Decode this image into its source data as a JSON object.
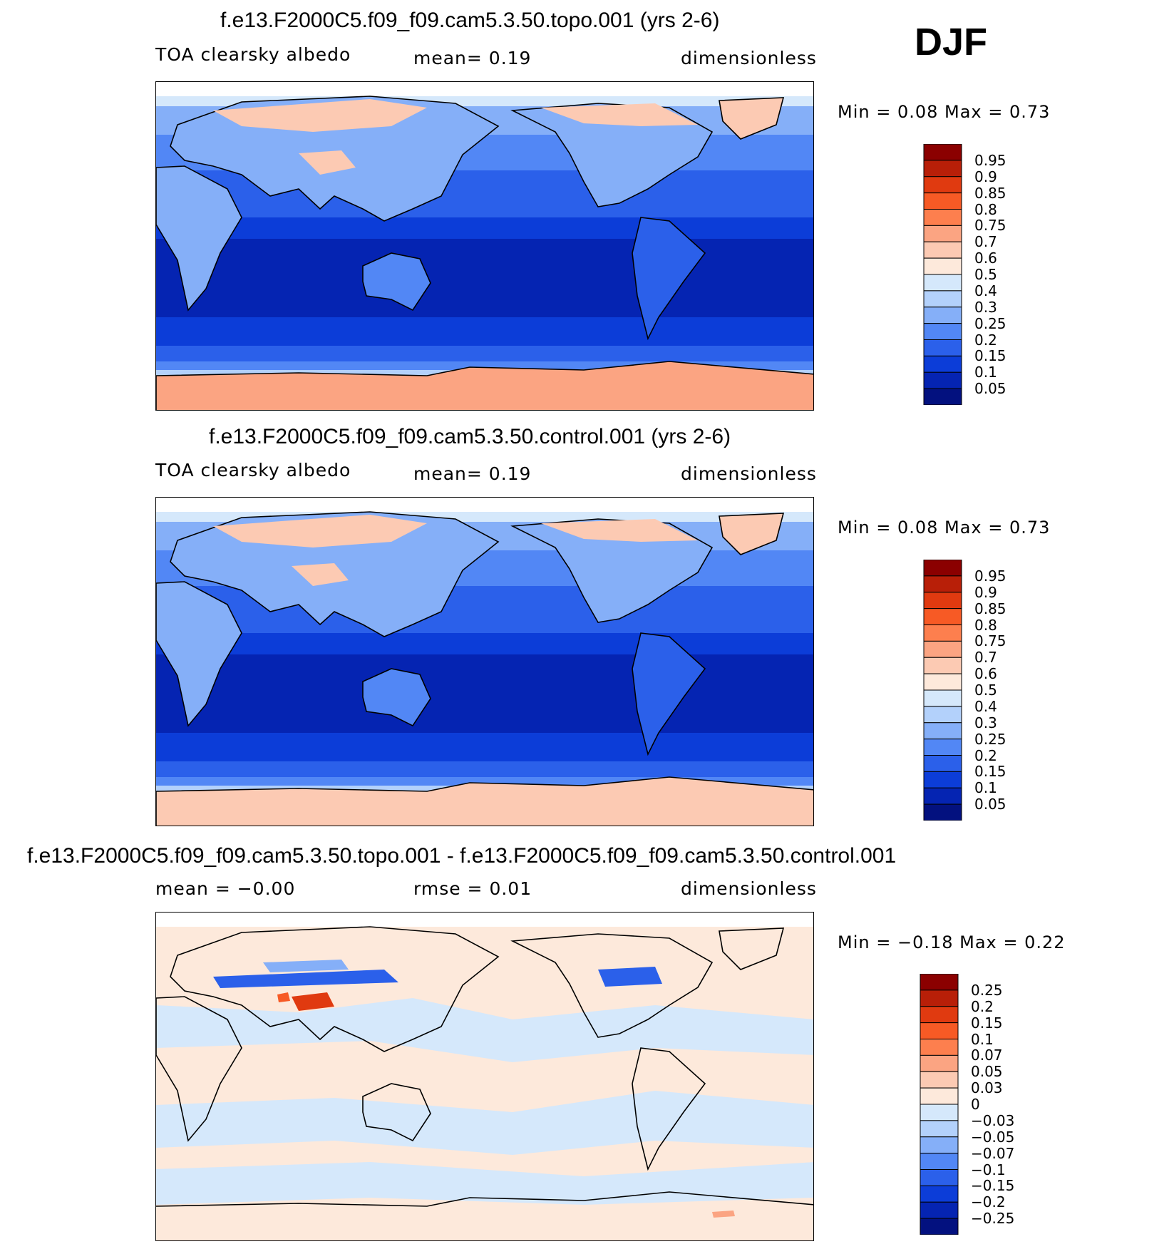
{
  "season": "DJF",
  "panels": [
    {
      "title": "f.e13.F2000C5.f09_f09.cam5.3.50.topo.001 (yrs 2-6)",
      "left_label": "TOA clearsky albedo",
      "mid_label": "mean=    0.19",
      "units": "dimensionless",
      "stats": "Min  =     0.08  Max  =     0.73",
      "colorbar": {
        "levels": [
          "0.95",
          "0.9",
          "0.85",
          "0.8",
          "0.75",
          "0.7",
          "0.6",
          "0.5",
          "0.4",
          "0.3",
          "0.25",
          "0.2",
          "0.15",
          "0.1",
          "0.05"
        ],
        "colors": [
          "#8b0000",
          "#b81f08",
          "#e03a10",
          "#f75a25",
          "#fd7f4e",
          "#fba482",
          "#fccab3",
          "#fde9db",
          "#d5e8fb",
          "#b3d1fb",
          "#85aff8",
          "#5287f5",
          "#2b60ea",
          "#0c3dd8",
          "#0524b2",
          "#03117f"
        ]
      }
    },
    {
      "title": "f.e13.F2000C5.f09_f09.cam5.3.50.control.001 (yrs 2-6)",
      "left_label": "TOA clearsky albedo",
      "mid_label": "mean=    0.19",
      "units": "dimensionless",
      "stats": "Min  =     0.08  Max  =     0.73",
      "colorbar": {
        "levels": [
          "0.95",
          "0.9",
          "0.85",
          "0.8",
          "0.75",
          "0.7",
          "0.6",
          "0.5",
          "0.4",
          "0.3",
          "0.25",
          "0.2",
          "0.15",
          "0.1",
          "0.05"
        ],
        "colors": [
          "#8b0000",
          "#b81f08",
          "#e03a10",
          "#f75a25",
          "#fd7f4e",
          "#fba482",
          "#fccab3",
          "#fde9db",
          "#d5e8fb",
          "#b3d1fb",
          "#85aff8",
          "#5287f5",
          "#2b60ea",
          "#0c3dd8",
          "#0524b2",
          "#03117f"
        ]
      }
    },
    {
      "title": "f.e13.F2000C5.f09_f09.cam5.3.50.topo.001 - f.e13.F2000C5.f09_f09.cam5.3.50.control.001",
      "left_label": "mean  =    −0.00",
      "mid_label": "rmse  =     0.01",
      "units": "dimensionless",
      "stats": "Min  =    −0.18  Max  =     0.22",
      "colorbar": {
        "levels": [
          "0.25",
          "0.2",
          "0.15",
          "0.1",
          "0.07",
          "0.05",
          "0.03",
          "0",
          "−0.03",
          "−0.05",
          "−0.07",
          "−0.1",
          "−0.15",
          "−0.2",
          "−0.25"
        ],
        "colors": [
          "#8b0000",
          "#b81f08",
          "#e03a10",
          "#f75a25",
          "#fd7f4e",
          "#fba482",
          "#fccab3",
          "#fde9db",
          "#d5e8fb",
          "#b3d1fb",
          "#85aff8",
          "#5287f5",
          "#2b60ea",
          "#0c3dd8",
          "#0524b2",
          "#03117f"
        ]
      }
    }
  ]
}
